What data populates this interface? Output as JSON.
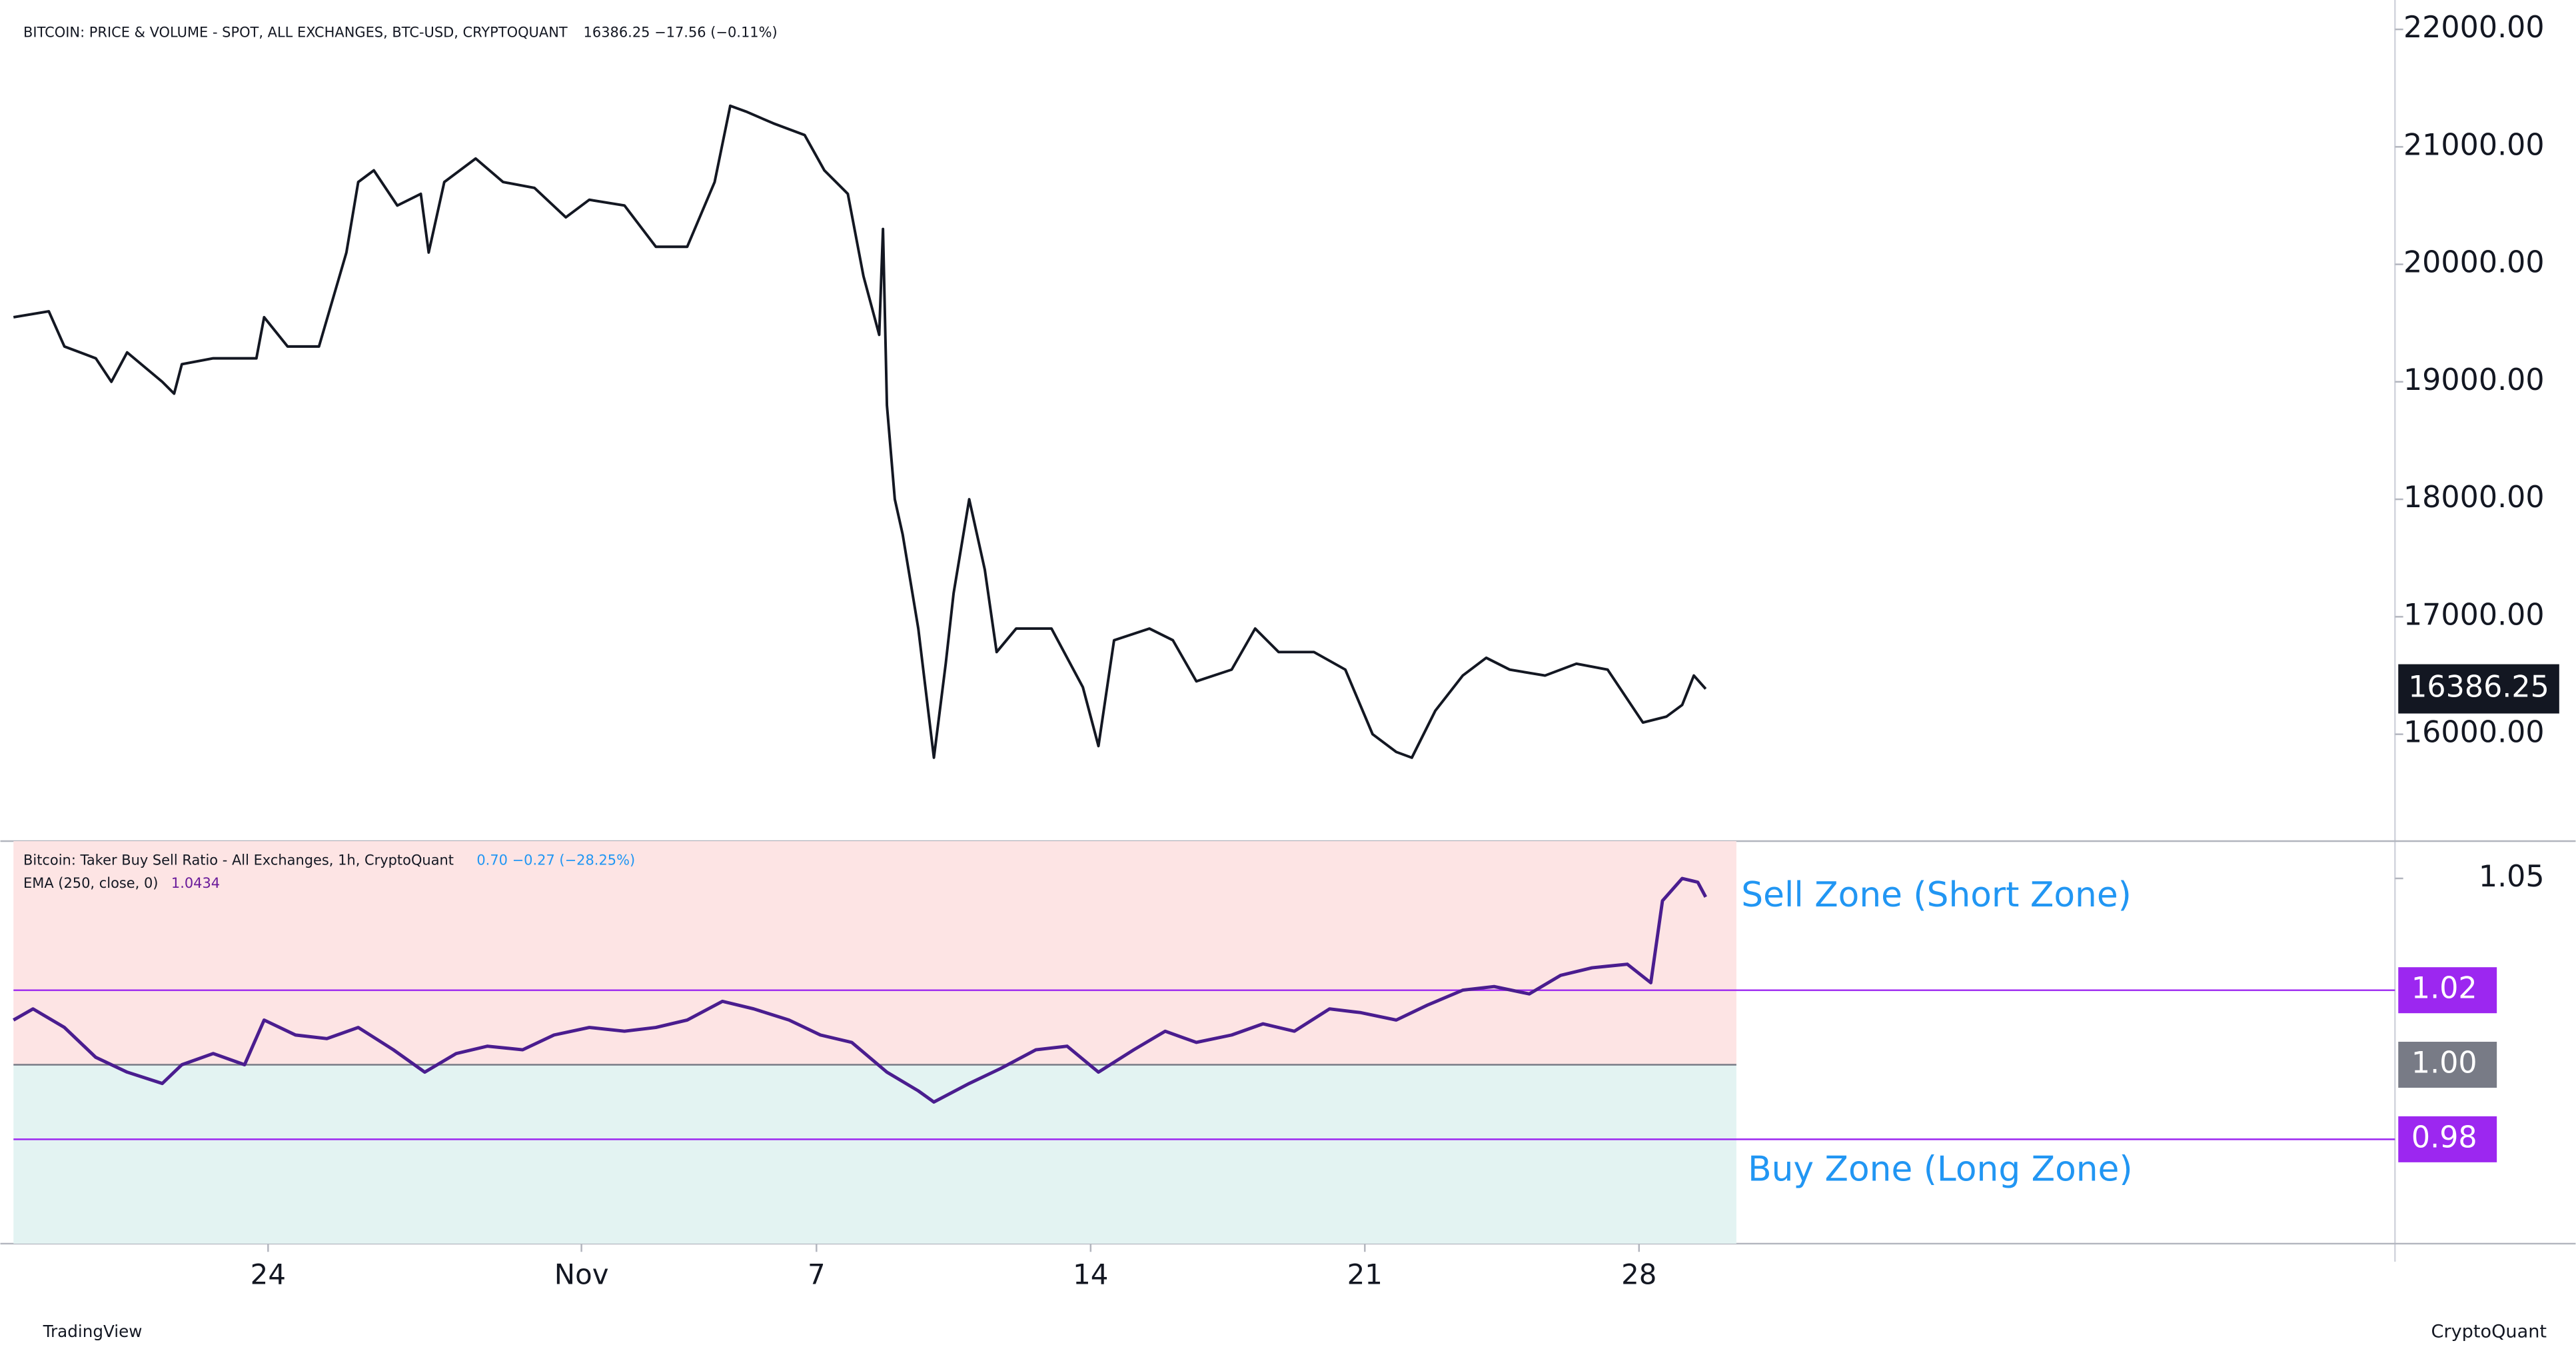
{
  "chart_data": [
    {
      "type": "line",
      "title": "BITCOIN: PRICE & VOLUME - SPOT, ALL EXCHANGES, BTC-USD, CRYPTOQUANT",
      "subtitle": "16386.25  −17.56 (−0.11%)",
      "x": [
        17.5,
        18.4,
        18.8,
        19.6,
        20.0,
        20.4,
        21.3,
        21.6,
        21.8,
        22.6,
        23.7,
        23.9,
        24.5,
        25.3,
        26.0,
        26.3,
        26.7,
        27.3,
        27.9,
        28.1,
        28.5,
        29.3,
        30.0,
        30.8,
        31.6,
        32.2,
        33.1,
        33.9,
        34.7,
        35.4,
        35.8,
        36.2,
        36.9,
        37.7,
        38.2,
        38.8,
        39.2,
        39.6,
        39.7,
        39.8,
        40.0,
        40.2,
        40.6,
        41.0,
        41.3,
        41.5,
        41.9,
        42.3,
        42.6,
        43.1,
        44.0,
        44.8,
        45.2,
        45.6,
        46.5,
        47.1,
        47.7,
        48.6,
        49.2,
        49.8,
        50.7,
        51.5,
        52.2,
        52.8,
        53.2,
        53.8,
        54.5,
        55.1,
        55.7,
        56.6,
        57.4,
        58.2,
        59.1,
        59.7,
        60.1,
        60.4,
        60.7
      ],
      "series": [
        {
          "name": "BTC-USD",
          "color": "#131722",
          "values": [
            19550,
            19600,
            19300,
            19200,
            19000,
            19250,
            19000,
            18900,
            19150,
            19200,
            19200,
            19550,
            19300,
            19300,
            20100,
            20700,
            20800,
            20500,
            20600,
            20100,
            20700,
            20900,
            20700,
            20650,
            20400,
            20550,
            20500,
            20150,
            20150,
            20700,
            21350,
            21300,
            21200,
            21100,
            20800,
            20600,
            19900,
            19400,
            20300,
            18800,
            18000,
            17700,
            16900,
            15800,
            16600,
            17200,
            18000,
            17400,
            16700,
            16900,
            16900,
            16400,
            15900,
            16800,
            16900,
            16800,
            16450,
            16550,
            16900,
            16700,
            16700,
            16550,
            16000,
            15850,
            15800,
            16200,
            16500,
            16650,
            16550,
            16500,
            16600,
            16550,
            16100,
            16150,
            16250,
            16500,
            16386.25
          ],
          "last_label": "16386.25"
        }
      ],
      "ylim": [
        15090,
        22250
      ],
      "yticks": [
        {
          "value": 16000,
          "label": "16000.00"
        },
        {
          "value": 17000,
          "label": "17000.00"
        },
        {
          "value": 18000,
          "label": "18000.00"
        },
        {
          "value": 19000,
          "label": "19000.00"
        },
        {
          "value": 20000,
          "label": "20000.00"
        },
        {
          "value": 21000,
          "label": "21000.00"
        },
        {
          "value": 22000,
          "label": "22000.00"
        }
      ],
      "xlim": [
        17.5,
        78.3
      ]
    },
    {
      "type": "line",
      "title": "Bitcoin: Taker Buy Sell Ratio - All Exchanges, 1h, CryptoQuant",
      "subtitle": "0.70  −0.27 (−28.25%)",
      "indicator": "EMA (250, close, 0)",
      "indicator_value": "1.0434",
      "x": [
        17.5,
        18.0,
        18.8,
        19.6,
        20.4,
        21.3,
        21.8,
        22.6,
        23.4,
        23.9,
        24.7,
        25.5,
        26.3,
        27.2,
        28.0,
        28.8,
        29.6,
        30.5,
        31.3,
        32.2,
        33.1,
        33.9,
        34.7,
        35.6,
        36.4,
        37.3,
        38.1,
        38.9,
        39.8,
        40.6,
        41.0,
        41.9,
        42.7,
        43.6,
        44.4,
        45.2,
        46.1,
        46.9,
        47.7,
        48.6,
        49.4,
        50.2,
        51.1,
        51.9,
        52.8,
        53.6,
        54.5,
        55.3,
        56.2,
        57.0,
        57.8,
        58.7,
        59.3,
        59.6,
        60.1,
        60.5,
        60.7
      ],
      "series": [
        {
          "name": "EMA",
          "color": "#4a1d8f",
          "values": [
            1.012,
            1.015,
            1.01,
            1.002,
            0.998,
            0.995,
            1.0,
            1.003,
            1.0,
            1.012,
            1.008,
            1.007,
            1.01,
            1.004,
            0.998,
            1.003,
            1.005,
            1.004,
            1.008,
            1.01,
            1.009,
            1.01,
            1.012,
            1.017,
            1.015,
            1.012,
            1.008,
            1.006,
            0.998,
            0.993,
            0.99,
            0.995,
            0.999,
            1.004,
            1.005,
            0.998,
            1.004,
            1.009,
            1.006,
            1.008,
            1.011,
            1.009,
            1.015,
            1.014,
            1.012,
            1.016,
            1.02,
            1.021,
            1.019,
            1.024,
            1.026,
            1.027,
            1.022,
            1.044,
            1.05,
            1.049,
            1.045
          ]
        }
      ],
      "ylim": [
        0.952,
        1.06
      ],
      "yticks": [
        1.05
      ],
      "levels": [
        {
          "value": 1.02,
          "label": "1.02",
          "color": "#9c27f0"
        },
        {
          "value": 1,
          "label": "1.00",
          "color": "#787b86"
        },
        {
          "value": 0.98,
          "label": "0.98",
          "color": "#9c27f0"
        }
      ],
      "zones": [
        {
          "label": "Sell Zone (Short Zone)",
          "color": "#fde4e4"
        },
        {
          "label": "Buy Zone (Long Zone)",
          "color": "#e3f3f2"
        }
      ],
      "xlim": [
        17.5,
        78.3
      ],
      "xticks": [
        {
          "value": 24,
          "label": "24"
        },
        {
          "value": 32,
          "label": "Nov"
        },
        {
          "value": 38,
          "label": "7"
        },
        {
          "value": 45,
          "label": "14"
        },
        {
          "value": 52,
          "label": "21"
        },
        {
          "value": 59,
          "label": "28"
        }
      ]
    }
  ],
  "footer": {
    "left": "TradingView",
    "right": "CryptoQuant"
  }
}
